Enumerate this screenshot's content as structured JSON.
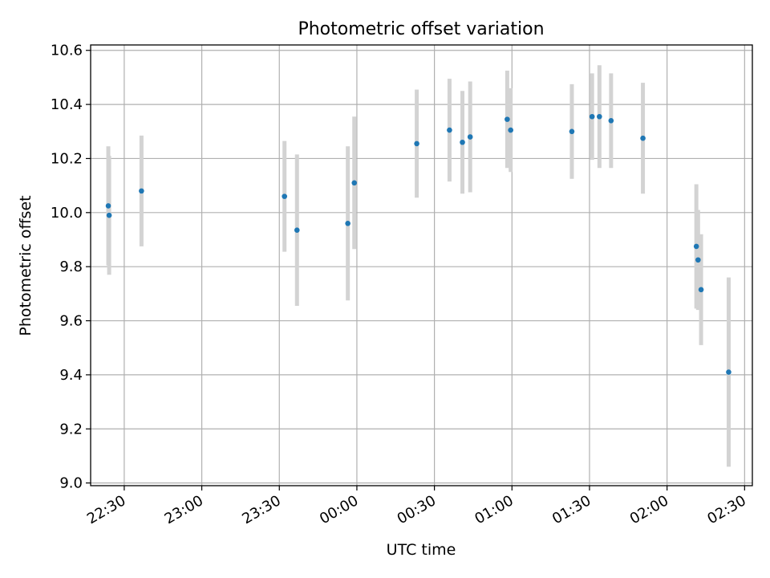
{
  "chart_data": {
    "type": "scatter",
    "title": "Photometric offset variation",
    "xlabel": "UTC time",
    "ylabel": "Photometric offset",
    "xlim": [
      "22:17",
      "02:33"
    ],
    "ylim": [
      8.99,
      10.62
    ],
    "x_ticks": [
      "22:30",
      "23:00",
      "23:30",
      "00:00",
      "00:30",
      "01:00",
      "01:30",
      "02:00",
      "02:30"
    ],
    "y_ticks": [
      "9.0",
      "9.2",
      "9.4",
      "9.6",
      "9.8",
      "10.0",
      "10.2",
      "10.4",
      "10.6"
    ],
    "grid": true,
    "point_color": "#1f77b4",
    "errorbar_color": "#d3d3d3",
    "points": [
      {
        "x": "22:23:50",
        "y": 10.025,
        "err": 0.22
      },
      {
        "x": "22:24:10",
        "y": 9.99,
        "err": 0.22
      },
      {
        "x": "22:36:40",
        "y": 10.08,
        "err": 0.205
      },
      {
        "x": "23:32:00",
        "y": 10.06,
        "err": 0.205
      },
      {
        "x": "23:36:50",
        "y": 9.935,
        "err": 0.28
      },
      {
        "x": "23:56:30",
        "y": 9.96,
        "err": 0.285
      },
      {
        "x": "23:59:00",
        "y": 10.11,
        "err": 0.245
      },
      {
        "x": "00:23:10",
        "y": 10.255,
        "err": 0.2
      },
      {
        "x": "00:35:50",
        "y": 10.305,
        "err": 0.19
      },
      {
        "x": "00:40:50",
        "y": 10.26,
        "err": 0.19
      },
      {
        "x": "00:43:50",
        "y": 10.28,
        "err": 0.205
      },
      {
        "x": "00:58:10",
        "y": 10.345,
        "err": 0.18
      },
      {
        "x": "00:59:30",
        "y": 10.305,
        "err": 0.155
      },
      {
        "x": "01:23:10",
        "y": 10.3,
        "err": 0.175
      },
      {
        "x": "01:31:00",
        "y": 10.355,
        "err": 0.16
      },
      {
        "x": "01:33:50",
        "y": 10.355,
        "err": 0.19
      },
      {
        "x": "01:38:20",
        "y": 10.34,
        "err": 0.175
      },
      {
        "x": "01:50:40",
        "y": 10.275,
        "err": 0.205
      },
      {
        "x": "02:11:20",
        "y": 9.875,
        "err": 0.23
      },
      {
        "x": "02:12:00",
        "y": 9.825,
        "err": 0.185
      },
      {
        "x": "02:13:10",
        "y": 9.715,
        "err": 0.205
      },
      {
        "x": "02:23:50",
        "y": 9.41,
        "err": 0.35
      }
    ]
  }
}
